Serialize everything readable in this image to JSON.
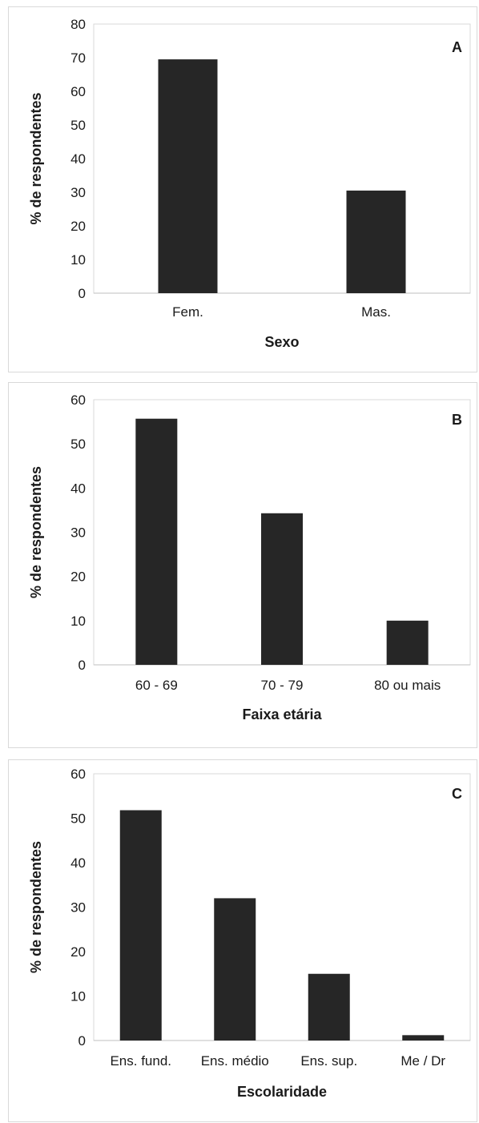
{
  "chart_data": [
    {
      "type": "bar",
      "panel_label": "A",
      "categories": [
        "Fem.",
        "Mas."
      ],
      "values": [
        69.5,
        30.5
      ],
      "xlabel": "Sexo",
      "ylabel": "% de respondentes",
      "ylim": [
        0,
        80
      ],
      "yticks": [
        "0",
        "10",
        "20",
        "30",
        "40",
        "50",
        "60",
        "70",
        "80"
      ],
      "bar_color": "#262626",
      "grid": false
    },
    {
      "type": "bar",
      "panel_label": "B",
      "categories": [
        "60 - 69",
        "70 - 79",
        "80 ou mais"
      ],
      "values": [
        55.7,
        34.3,
        10.0
      ],
      "xlabel": "Faixa etária",
      "ylabel": "% de respondentes",
      "ylim": [
        0,
        60
      ],
      "yticks": [
        "0",
        "10",
        "20",
        "30",
        "40",
        "50",
        "60"
      ],
      "bar_color": "#262626",
      "grid": false
    },
    {
      "type": "bar",
      "panel_label": "C",
      "categories": [
        "Ens. fund.",
        "Ens. médio",
        "Ens. sup.",
        "Me / Dr"
      ],
      "values": [
        51.8,
        32.0,
        15.0,
        1.2
      ],
      "xlabel": "Escolaridade",
      "ylabel": "% de respondentes",
      "ylim": [
        0,
        60
      ],
      "yticks": [
        "0",
        "10",
        "20",
        "30",
        "40",
        "50",
        "60"
      ],
      "bar_color": "#262626",
      "grid": false
    }
  ]
}
